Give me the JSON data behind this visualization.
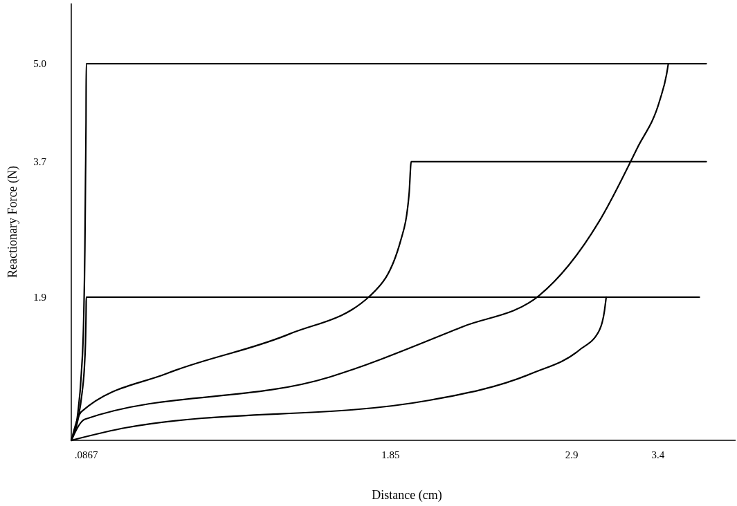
{
  "chart_data": {
    "type": "line",
    "xlabel": "Distance (cm)",
    "ylabel": "Reactionary Force (N)",
    "xlim": [
      0,
      3.85
    ],
    "ylim": [
      0,
      5.8
    ],
    "xticks": [
      {
        "value": 0.0867,
        "label": ".0867"
      },
      1.85,
      2.9,
      3.4
    ],
    "yticks": [
      1.9,
      3.7,
      {
        "value": 5,
        "label": "5.0"
      }
    ],
    "grid": false,
    "marker": "none",
    "line_style": "solid",
    "series": [
      {
        "color": "#000000",
        "x": [
          0,
          0.039,
          0.0584,
          0.0719,
          0.0788,
          0.0827,
          0.0855,
          0.0867,
          3.68
        ],
        "values": [
          0,
          0.38,
          0.89,
          1.61,
          2.54,
          3.53,
          4.23,
          5.0,
          5.0
        ]
      },
      {
        "color": "#000000",
        "x": [
          0,
          0.039,
          0.063,
          0.0767,
          0.0835,
          0.0859,
          0.0867,
          3.64
        ],
        "values": [
          0,
          0.28,
          0.64,
          1.0,
          1.41,
          1.72,
          1.9,
          1.9
        ]
      },
      {
        "color": "#000000",
        "x": [
          0,
          0.0584,
          0.557,
          1.262,
          1.732,
          1.91,
          1.958,
          1.97,
          3.68
        ],
        "values": [
          0,
          0.38,
          0.89,
          1.41,
          1.92,
          2.66,
          3.28,
          3.7,
          3.7
        ]
      },
      {
        "color": "#000000",
        "x": [
          0,
          0.0788,
          1.497,
          2.27,
          2.71,
          3.06,
          3.28,
          3.41,
          3.45,
          3.46
        ],
        "values": [
          0,
          0.28,
          0.84,
          1.51,
          1.92,
          2.91,
          3.88,
          4.51,
          4.86,
          5.0
        ]
      },
      {
        "color": "#000000",
        "x": [
          0,
          0.322,
          2.07,
          2.67,
          2.945,
          3.06,
          3.09,
          3.1
        ],
        "values": [
          0,
          0.17,
          0.53,
          0.89,
          1.2,
          1.46,
          1.72,
          1.9
        ]
      }
    ]
  }
}
